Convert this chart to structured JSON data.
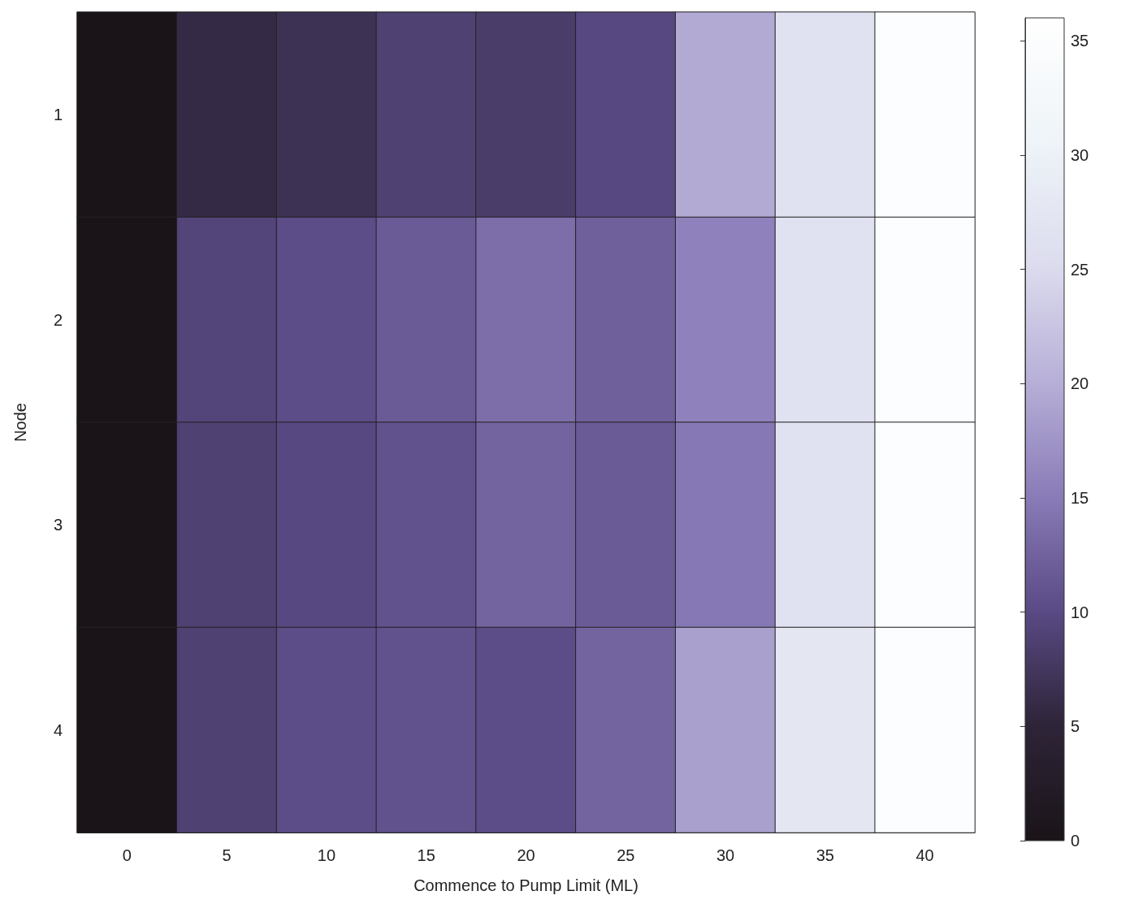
{
  "chart_data": {
    "type": "heatmap",
    "xlabel": "Commence to Pump Limit (ML)",
    "ylabel": "Node",
    "categories": [
      "0",
      "5",
      "10",
      "15",
      "20",
      "25",
      "30",
      "35",
      "40"
    ],
    "y_categories": [
      "1",
      "2",
      "3",
      "4"
    ],
    "cells": [
      [
        0,
        6,
        7,
        9,
        8.5,
        10,
        20,
        27,
        35
      ],
      [
        0,
        9.5,
        10.5,
        12,
        14,
        12.5,
        16,
        27,
        35
      ],
      [
        0,
        9,
        10,
        11,
        13,
        12,
        15,
        27,
        35
      ],
      [
        0,
        9,
        10.5,
        11,
        10.5,
        13,
        19,
        28,
        35
      ]
    ],
    "clim": [
      0,
      36
    ],
    "cticks": [
      0,
      5,
      10,
      15,
      20,
      25,
      30,
      35
    ]
  }
}
